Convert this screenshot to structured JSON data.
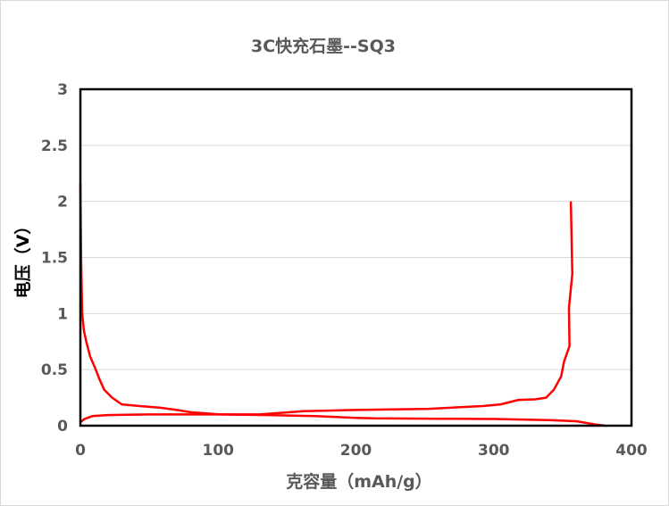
{
  "chart_data": {
    "type": "line",
    "title": "3C快充石墨--SQ3",
    "xlabel": "克容量（mAh/g）",
    "ylabel": "电压（V）",
    "xlim": [
      0,
      400
    ],
    "ylim": [
      0,
      3
    ],
    "xticks": [
      "0",
      "100",
      "200",
      "300",
      "400"
    ],
    "yticks": [
      "0",
      "0.5",
      "1",
      "1.5",
      "2",
      "2.5",
      "3"
    ],
    "grid": "horizontal",
    "legend": "none",
    "color": "#ff0000",
    "series": [
      {
        "x": [
          0,
          0.5,
          1.3,
          2.5,
          4.3,
          7,
          10.8,
          14,
          17.3,
          23,
          30,
          43,
          58,
          70,
          80,
          101,
          136,
          170,
          200,
          214,
          260,
          300,
          340,
          360,
          374,
          381
        ],
        "y": [
          2.16,
          1.5,
          1.0,
          0.85,
          0.75,
          0.62,
          0.51,
          0.41,
          0.32,
          0.25,
          0.19,
          0.175,
          0.16,
          0.14,
          0.12,
          0.1,
          0.095,
          0.085,
          0.07,
          0.065,
          0.062,
          0.06,
          0.05,
          0.04,
          0.01,
          0.0
        ]
      },
      {
        "x": [
          0,
          3,
          8.6,
          19.5,
          50,
          100,
          130,
          162,
          200,
          253,
          292,
          305,
          318,
          330,
          338,
          343.6,
          349,
          351,
          355,
          354.6,
          357,
          357,
          356
        ],
        "y": [
          0.03,
          0.06,
          0.085,
          0.095,
          0.1,
          0.1,
          0.1,
          0.13,
          0.14,
          0.15,
          0.175,
          0.19,
          0.23,
          0.235,
          0.25,
          0.32,
          0.44,
          0.57,
          0.71,
          1.05,
          1.35,
          1.37,
          2.0
        ]
      }
    ]
  }
}
